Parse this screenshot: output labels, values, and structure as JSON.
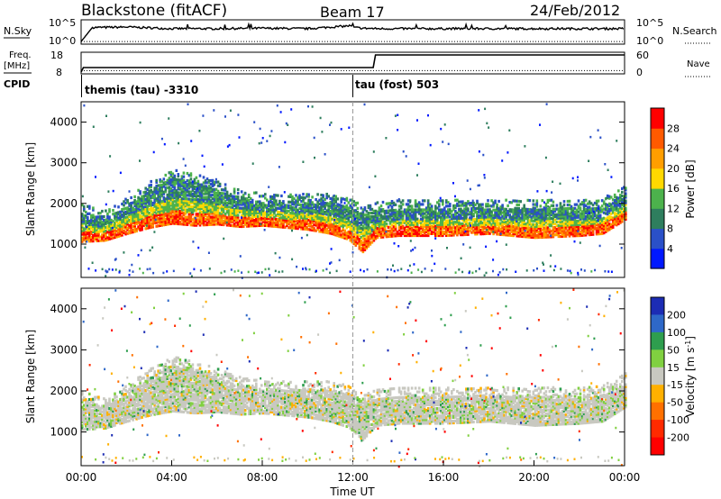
{
  "header": {
    "station": "Blackstone (fitACF)",
    "beam": "Beam 17",
    "date": "24/Feb/2012"
  },
  "left_labels": {
    "nsky": "N.Sky",
    "nsky_tick_top": "10^5",
    "nsky_tick_bottom": "10^0",
    "freq": "Freq.",
    "freq_unit": "[MHz]",
    "freq_tick_top": "18",
    "freq_tick_bottom": "8",
    "cpid": "CPID"
  },
  "right_labels": {
    "nsearch": "N.Search",
    "nsearch_tick_top": "10^5",
    "nsearch_tick_bottom": "10^0",
    "nave": "Nave",
    "nave_tick_top": "60",
    "nave_tick_bottom": "0"
  },
  "cpid_labels": {
    "first": "themis (tau) -3310",
    "second": "tau (fost) 503"
  },
  "chart_data": [
    {
      "type": "line",
      "panel": "noise",
      "series": [
        {
          "name": "N.Sky",
          "style": "solid",
          "x_hours": [
            0,
            0.5,
            1,
            2,
            4,
            6,
            8,
            10,
            11.9,
            12,
            12.5,
            13,
            16,
            20,
            24
          ],
          "log10_values": [
            0.2,
            3.6,
            3.6,
            3.7,
            3.3,
            3.3,
            3.4,
            3.3,
            4.0,
            3.6,
            3.4,
            3.3,
            3.3,
            3.3,
            3.3
          ]
        },
        {
          "name": "N.Search",
          "style": "dotted",
          "x_hours": [
            0,
            24
          ],
          "log10_values": [
            0.2,
            0.2
          ]
        }
      ]
    },
    {
      "type": "line",
      "panel": "frequency",
      "series": [
        {
          "name": "Freq.",
          "style": "solid",
          "x_hours": [
            0,
            0.1,
            12.9,
            13.0,
            24
          ],
          "values": [
            8,
            10.5,
            10.5,
            17.5,
            17.5
          ]
        },
        {
          "name": "Nave",
          "style": "dotted",
          "x_hours": [
            0,
            24
          ],
          "values": [
            5,
            5
          ]
        }
      ]
    },
    {
      "type": "heatmap",
      "panel": "power",
      "xlabel": "",
      "ylabel": "Slant Range [km]",
      "xlim_hours": [
        0,
        24
      ],
      "ylim_km": [
        180,
        4500
      ],
      "yticks": [
        "1000",
        "2000",
        "3000",
        "4000"
      ],
      "colorbar_label": "Power [dB]",
      "colorbar_ticks": [
        "4",
        "8",
        "12",
        "16",
        "20",
        "24",
        "28"
      ],
      "colorbar_range": [
        0,
        30
      ],
      "colors": [
        "#0018ff",
        "#2a50c8",
        "#2e7e5e",
        "#4cb24c",
        "#ffd800",
        "#ff9e00",
        "#ff5a00",
        "#ff0000"
      ],
      "echo_bands": [
        {
          "x_hours": [
            0,
            1,
            2,
            3,
            4,
            5,
            6,
            7,
            8,
            9,
            10,
            11,
            11.8,
            12.4,
            13,
            14,
            16,
            18,
            20,
            22,
            23,
            24
          ],
          "ground_km": [
            1150,
            1180,
            1350,
            1500,
            1600,
            1550,
            1580,
            1520,
            1550,
            1500,
            1450,
            1350,
            1200,
            900,
            1250,
            1300,
            1300,
            1350,
            1250,
            1300,
            1350,
            1700
          ],
          "upper_km": [
            1750,
            1600,
            1900,
            2300,
            2600,
            2500,
            2300,
            2100,
            2000,
            2000,
            2000,
            2000,
            1900,
            1700,
            1800,
            1850,
            1850,
            1850,
            1850,
            1850,
            1900,
            2200
          ]
        }
      ]
    },
    {
      "type": "heatmap",
      "panel": "velocity",
      "xlabel": "Time UT",
      "ylabel": "Slant Range [km]",
      "xlim_hours": [
        0,
        24
      ],
      "ylim_km": [
        180,
        4500
      ],
      "xticks": [
        "00:00",
        "04:00",
        "08:00",
        "12:00",
        "16:00",
        "20:00",
        "00:00"
      ],
      "yticks": [
        "1000",
        "2000",
        "3000",
        "4000"
      ],
      "colorbar_label": "Velocity [m s^-1]",
      "colorbar_ticks": [
        "200",
        "100",
        "50",
        "15",
        "-15",
        "-50",
        "-100",
        "-200"
      ],
      "colors": [
        "#1c2cb4",
        "#2e68c8",
        "#2e9e4e",
        "#80d040",
        "#c8c8c0",
        "#ffb000",
        "#ff7000",
        "#ff2a00",
        "#ff0000"
      ]
    }
  ],
  "ui": {
    "page_title": "Blackstone (fitACF) 24/Feb/2012"
  }
}
